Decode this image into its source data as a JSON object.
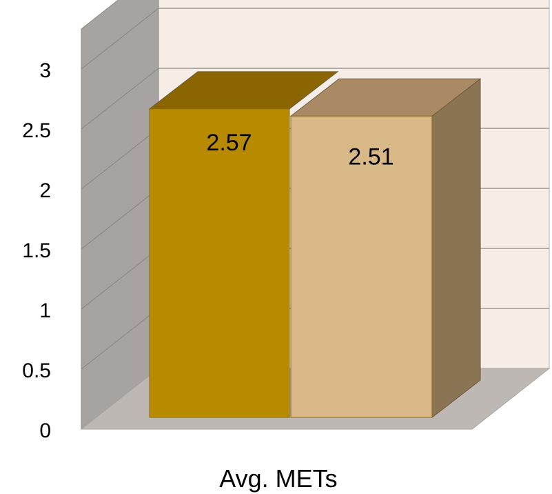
{
  "chart_data": {
    "type": "bar",
    "categories": [
      "Avg. METs"
    ],
    "series": [
      {
        "values": [
          2.57
        ],
        "label": "2.57",
        "color": "#B88A00"
      },
      {
        "values": [
          2.51
        ],
        "label": "2.51",
        "color": "#D8B886"
      }
    ],
    "ylim": [
      0,
      3
    ],
    "yticks": [
      "0",
      "0.5",
      "1",
      "1.5",
      "2",
      "2.5",
      "3"
    ],
    "grid": true,
    "legend": "none",
    "colors": {
      "back_wall": "#F6EDE6",
      "side_wall": "#A7A3A0",
      "floor": "#BDB8B3",
      "gridline": "#8C8985",
      "series1_top": "#8A6500",
      "series2_top": "#A98A64",
      "series2_side": "#8B7453"
    }
  }
}
